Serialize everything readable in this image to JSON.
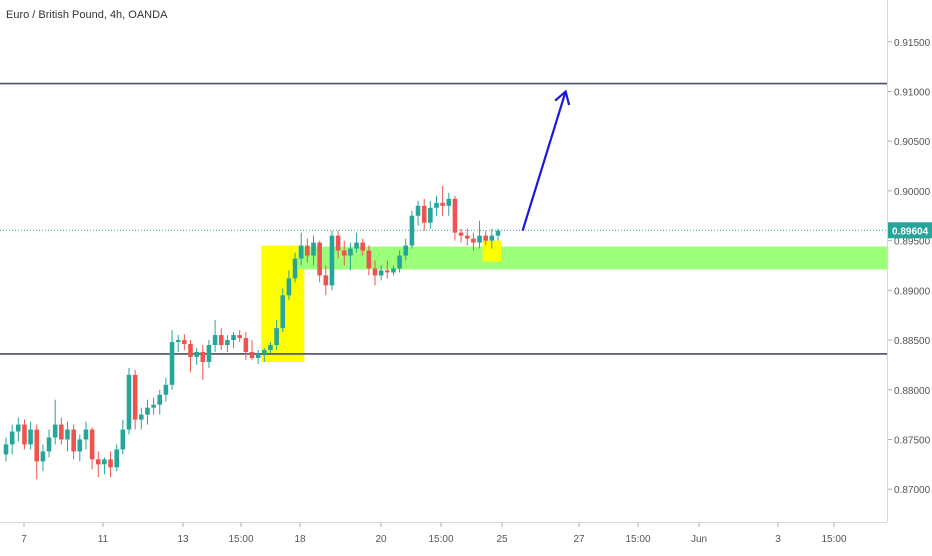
{
  "header": {
    "title": "Euro / British Pound, 4h, OANDA"
  },
  "colors": {
    "up": "#26a69a",
    "down": "#ef5350",
    "axis_text": "#555555",
    "resistance_line": "#4a4f6a",
    "current_price_line": "#26a69a",
    "yellow_zone": "#ffff00",
    "green_zone": "#9cff79",
    "arrow": "#1a1ad6"
  },
  "chart_data": {
    "type": "candlestick",
    "title": "Euro / British Pound, 4h, OANDA",
    "ylim": [
      0.8667,
      0.9192
    ],
    "price_ticks": [
      0.915,
      0.91,
      0.905,
      0.9,
      0.895,
      0.89,
      0.885,
      0.88,
      0.875,
      0.87
    ],
    "price_tick_labels": [
      "0.91500",
      "0.91000",
      "0.90500",
      "0.90000",
      "0.89500",
      "0.89000",
      "0.88500",
      "0.88000",
      "0.87500",
      "0.87000"
    ],
    "current_price": 0.89604,
    "current_price_label": "0.89604",
    "time_labels": [
      "7",
      "11",
      "13",
      "15:00",
      "18",
      "20",
      "15:00",
      "25",
      "27",
      "15:00",
      "Jun",
      "3",
      "15:00"
    ],
    "resistance_levels": [
      0.9108,
      0.8836
    ],
    "zones": [
      {
        "name": "yellow-breakout-zone",
        "from_index": 42,
        "to_index": 48,
        "low": 0.8828,
        "high": 0.8945
      },
      {
        "name": "green-support-zone",
        "from_index": 48,
        "to_index": 152,
        "low": 0.8921,
        "high": 0.8944
      },
      {
        "name": "yellow-entry-zone",
        "from_index": 78,
        "to_index": 80,
        "low": 0.8929,
        "high": 0.895
      }
    ],
    "candles": [
      [
        0.8735,
        0.8752,
        0.8728,
        0.8745
      ],
      [
        0.8745,
        0.8765,
        0.8735,
        0.8758
      ],
      [
        0.8758,
        0.8772,
        0.8748,
        0.8765
      ],
      [
        0.8765,
        0.877,
        0.874,
        0.8745
      ],
      [
        0.8745,
        0.8768,
        0.874,
        0.876
      ],
      [
        0.876,
        0.8765,
        0.871,
        0.8728
      ],
      [
        0.8728,
        0.8745,
        0.8718,
        0.8738
      ],
      [
        0.8738,
        0.876,
        0.8732,
        0.8752
      ],
      [
        0.8752,
        0.879,
        0.8745,
        0.8765
      ],
      [
        0.8765,
        0.8772,
        0.8745,
        0.875
      ],
      [
        0.875,
        0.8768,
        0.8738,
        0.876
      ],
      [
        0.876,
        0.8765,
        0.873,
        0.8738
      ],
      [
        0.8738,
        0.8755,
        0.8728,
        0.875
      ],
      [
        0.875,
        0.8768,
        0.874,
        0.876
      ],
      [
        0.876,
        0.8762,
        0.872,
        0.873
      ],
      [
        0.873,
        0.8738,
        0.8712,
        0.8725
      ],
      [
        0.8725,
        0.8732,
        0.8715,
        0.873
      ],
      [
        0.873,
        0.8738,
        0.8712,
        0.8722
      ],
      [
        0.8722,
        0.8745,
        0.8718,
        0.874
      ],
      [
        0.874,
        0.877,
        0.8735,
        0.876
      ],
      [
        0.876,
        0.8822,
        0.8755,
        0.8815
      ],
      [
        0.8815,
        0.882,
        0.876,
        0.877
      ],
      [
        0.877,
        0.8782,
        0.876,
        0.8775
      ],
      [
        0.8775,
        0.879,
        0.8765,
        0.8782
      ],
      [
        0.8782,
        0.8792,
        0.8775,
        0.8785
      ],
      [
        0.8785,
        0.88,
        0.8775,
        0.8795
      ],
      [
        0.8795,
        0.8812,
        0.8788,
        0.8805
      ],
      [
        0.8805,
        0.886,
        0.88,
        0.8848
      ],
      [
        0.8848,
        0.8855,
        0.8838,
        0.885
      ],
      [
        0.885,
        0.8856,
        0.884,
        0.8846
      ],
      [
        0.8846,
        0.885,
        0.8818,
        0.8833
      ],
      [
        0.8833,
        0.8842,
        0.8825,
        0.8838
      ],
      [
        0.8838,
        0.8845,
        0.881,
        0.8828
      ],
      [
        0.8828,
        0.885,
        0.8822,
        0.8845
      ],
      [
        0.8845,
        0.887,
        0.8838,
        0.8855
      ],
      [
        0.8855,
        0.8862,
        0.884,
        0.8845
      ],
      [
        0.8845,
        0.8855,
        0.8838,
        0.885
      ],
      [
        0.885,
        0.8858,
        0.8842,
        0.8855
      ],
      [
        0.8855,
        0.886,
        0.8848,
        0.8852
      ],
      [
        0.8852,
        0.8858,
        0.883,
        0.8838
      ],
      [
        0.8838,
        0.885,
        0.883,
        0.8832
      ],
      [
        0.8832,
        0.884,
        0.8826,
        0.8836
      ],
      [
        0.8836,
        0.8842,
        0.8828,
        0.884
      ],
      [
        0.884,
        0.8848,
        0.8836,
        0.8845
      ],
      [
        0.8845,
        0.887,
        0.884,
        0.8862
      ],
      [
        0.8862,
        0.8902,
        0.8858,
        0.8895
      ],
      [
        0.8895,
        0.892,
        0.889,
        0.8912
      ],
      [
        0.8912,
        0.8938,
        0.8908,
        0.8932
      ],
      [
        0.8932,
        0.8958,
        0.8925,
        0.8945
      ],
      [
        0.8945,
        0.8952,
        0.8928,
        0.8935
      ],
      [
        0.8935,
        0.8955,
        0.8925,
        0.8948
      ],
      [
        0.8948,
        0.895,
        0.8908,
        0.8915
      ],
      [
        0.8915,
        0.8925,
        0.8895,
        0.8905
      ],
      [
        0.8905,
        0.896,
        0.89,
        0.8955
      ],
      [
        0.8955,
        0.896,
        0.8932,
        0.894
      ],
      [
        0.894,
        0.895,
        0.8925,
        0.8935
      ],
      [
        0.8935,
        0.8948,
        0.892,
        0.8942
      ],
      [
        0.8942,
        0.8958,
        0.8938,
        0.8948
      ],
      [
        0.8948,
        0.8952,
        0.8935,
        0.894
      ],
      [
        0.894,
        0.8945,
        0.8915,
        0.8922
      ],
      [
        0.8922,
        0.893,
        0.8905,
        0.8915
      ],
      [
        0.8915,
        0.8925,
        0.891,
        0.892
      ],
      [
        0.892,
        0.893,
        0.8912,
        0.8918
      ],
      [
        0.8918,
        0.8925,
        0.8915,
        0.8922
      ],
      [
        0.8922,
        0.894,
        0.8918,
        0.8935
      ],
      [
        0.8935,
        0.8952,
        0.893,
        0.8945
      ],
      [
        0.8945,
        0.898,
        0.8942,
        0.8975
      ],
      [
        0.8975,
        0.899,
        0.8965,
        0.8985
      ],
      [
        0.8985,
        0.8992,
        0.896,
        0.8968
      ],
      [
        0.8968,
        0.899,
        0.8962,
        0.8983
      ],
      [
        0.8983,
        0.8995,
        0.8975,
        0.8988
      ],
      [
        0.8988,
        0.9005,
        0.8975,
        0.8985
      ],
      [
        0.8985,
        0.8998,
        0.8975,
        0.8992
      ],
      [
        0.8992,
        0.8995,
        0.895,
        0.8958
      ],
      [
        0.8958,
        0.8962,
        0.8948,
        0.8955
      ],
      [
        0.8955,
        0.8962,
        0.8945,
        0.8952
      ],
      [
        0.8952,
        0.8958,
        0.894,
        0.8948
      ],
      [
        0.8948,
        0.897,
        0.8942,
        0.8955
      ],
      [
        0.8955,
        0.896,
        0.8945,
        0.895
      ],
      [
        0.895,
        0.8962,
        0.8942,
        0.8955
      ],
      [
        0.8955,
        0.8962,
        0.895,
        0.896
      ]
    ]
  },
  "drawing": {
    "arrow": {
      "from_index": 84,
      "from_price": 0.896,
      "to_index": 91,
      "to_price": 0.91
    }
  }
}
